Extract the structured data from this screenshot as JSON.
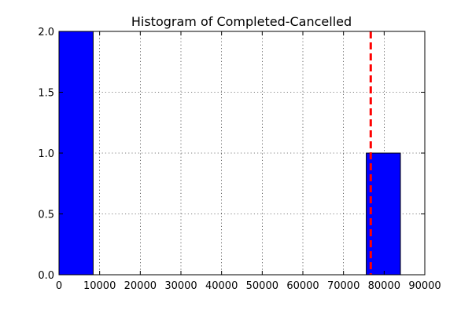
{
  "chart_data": {
    "type": "bar",
    "title": "Histogram of Completed-Cancelled",
    "xlabel": "",
    "ylabel": "",
    "xlim": [
      0,
      90000
    ],
    "ylim": [
      0,
      2.0
    ],
    "grid": true,
    "x_ticks": [
      0,
      10000,
      20000,
      30000,
      40000,
      50000,
      60000,
      70000,
      80000,
      90000
    ],
    "x_tick_labels": [
      "0",
      "10000",
      "20000",
      "30000",
      "40000",
      "50000",
      "60000",
      "70000",
      "80000",
      "90000"
    ],
    "y_ticks": [
      0.0,
      0.5,
      1.0,
      1.5,
      2.0
    ],
    "y_tick_labels": [
      "0.0",
      "0.5",
      "1.0",
      "1.5",
      "2.0"
    ],
    "bins": [
      {
        "start": 0,
        "end": 8400,
        "count": 2
      },
      {
        "start": 8400,
        "end": 16800,
        "count": 0
      },
      {
        "start": 16800,
        "end": 25200,
        "count": 0
      },
      {
        "start": 25200,
        "end": 33600,
        "count": 0
      },
      {
        "start": 33600,
        "end": 42000,
        "count": 0
      },
      {
        "start": 42000,
        "end": 50400,
        "count": 0
      },
      {
        "start": 50400,
        "end": 58800,
        "count": 0
      },
      {
        "start": 58800,
        "end": 67200,
        "count": 0
      },
      {
        "start": 67200,
        "end": 75600,
        "count": 0
      },
      {
        "start": 75600,
        "end": 84000,
        "count": 1
      }
    ],
    "reference_line": {
      "x": 76700,
      "style": "dashed",
      "color": "#ff0000"
    },
    "bar_color": "#0000ff"
  }
}
